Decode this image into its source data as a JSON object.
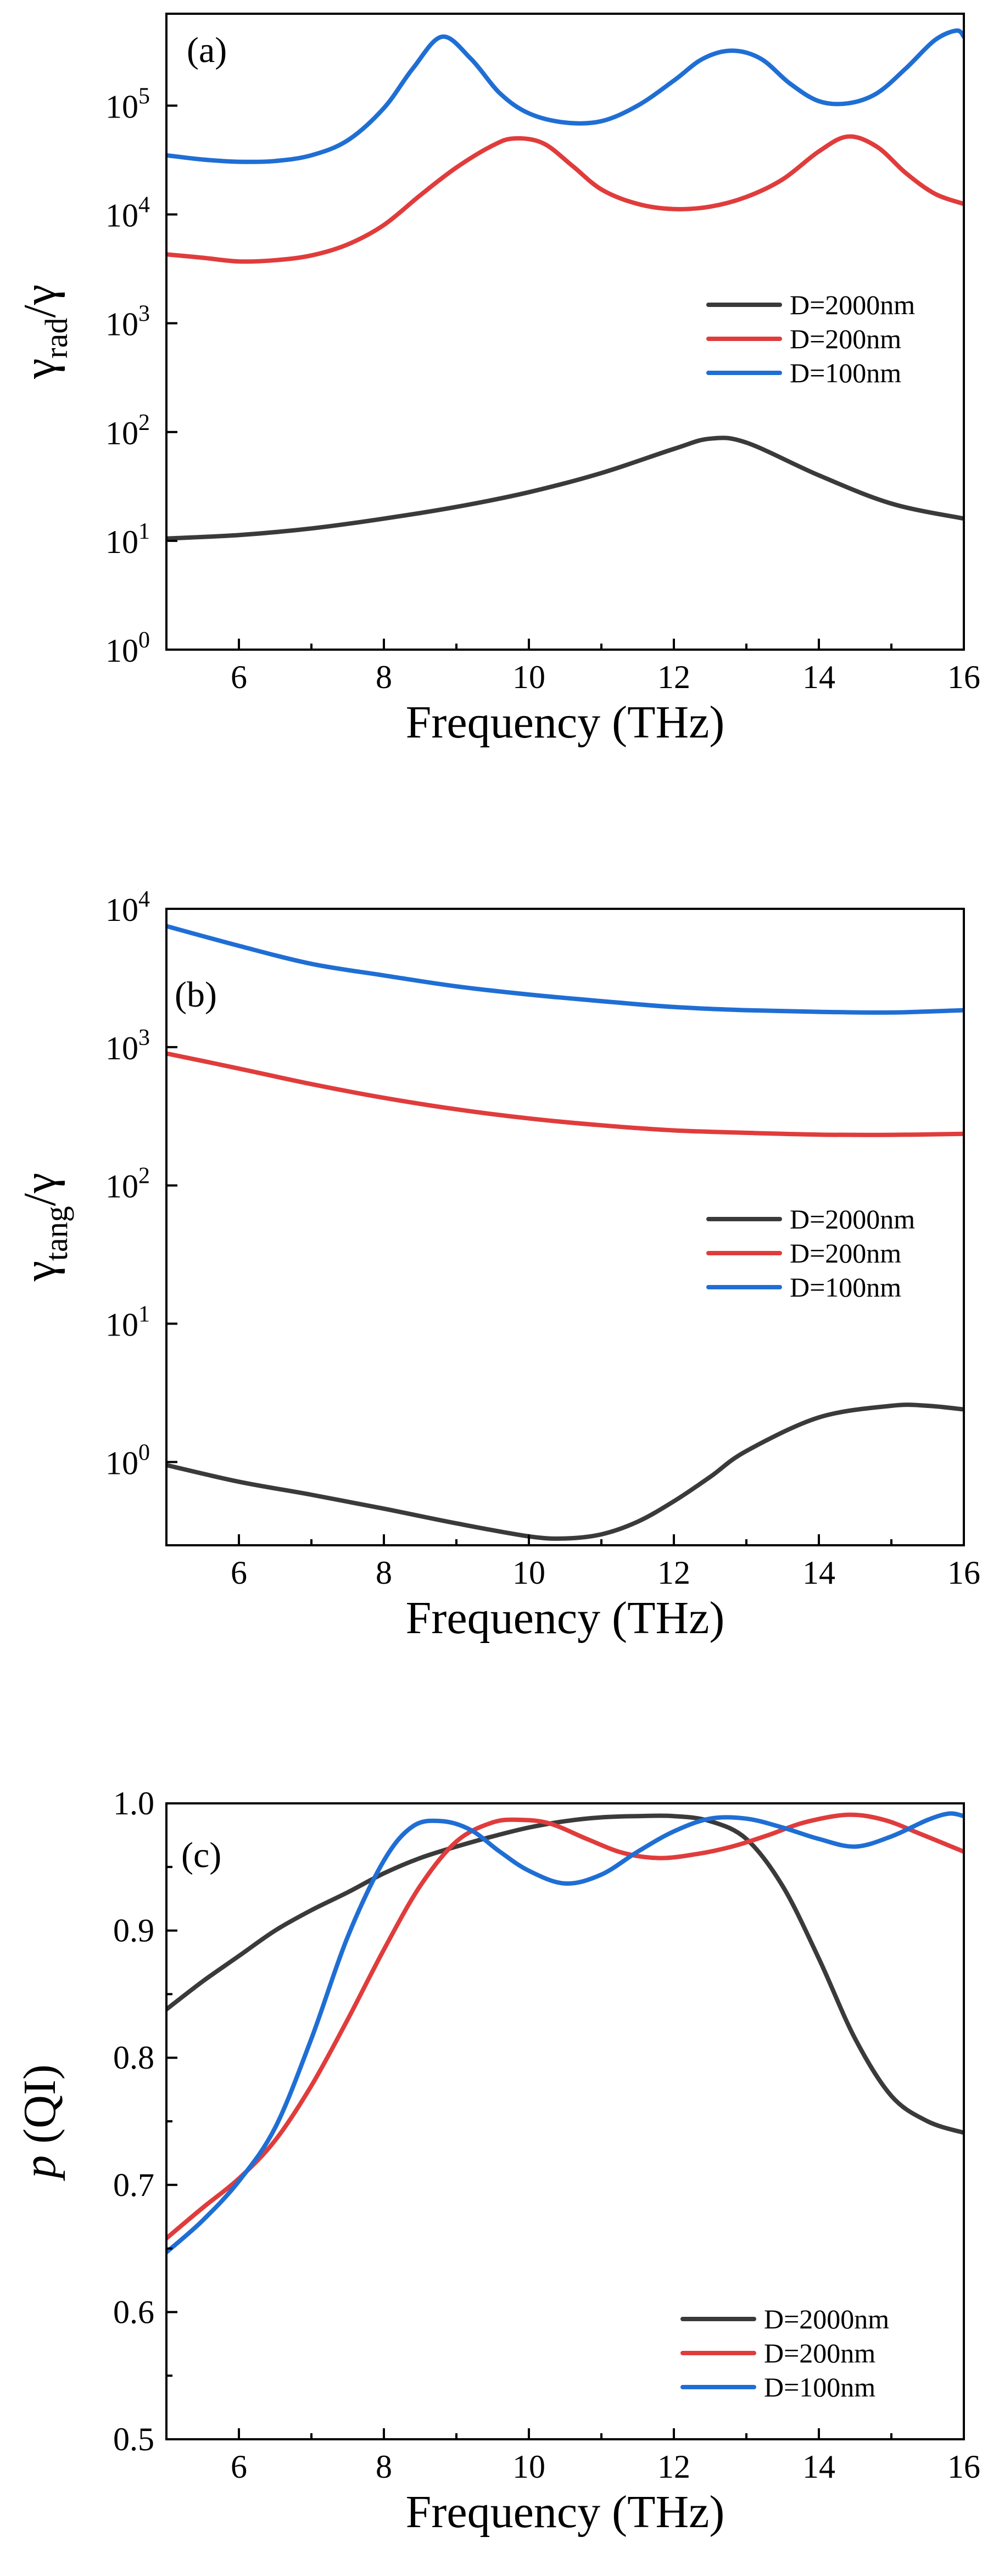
{
  "colors": {
    "d2000": "#3a3a3a",
    "d200": "#e03c3c",
    "d100": "#1f6ed4"
  },
  "chart_data": [
    {
      "type": "line",
      "panel_label": "(a)",
      "xlabel": "Frequency (THz)",
      "ylabel_main": "γ",
      "ylabel_sub": "rad",
      "ylabel_tail": "/γ",
      "yscale": "log",
      "xlim": [
        5,
        16
      ],
      "ylim": [
        1,
        700000
      ],
      "xticks": [
        6,
        8,
        10,
        12,
        14,
        16
      ],
      "xtick_labels": [
        "6",
        "8",
        "10",
        "12",
        "14",
        "16"
      ],
      "ytick_exponents": [
        0,
        1,
        2,
        3,
        4,
        5
      ],
      "ytick_base": "10",
      "ytick_sup": [
        "0",
        "1",
        "2",
        "3",
        "4",
        "5"
      ],
      "legend": [
        "D=2000nm",
        "D=200nm",
        "D=100nm"
      ],
      "series": [
        {
          "name": "D=2000nm",
          "x": [
            5,
            6,
            7,
            8,
            9,
            10,
            11,
            12,
            12.5,
            13,
            14,
            15,
            16
          ],
          "values": [
            10.5,
            11.3,
            13,
            16,
            20.5,
            28,
            42,
            70,
            87,
            80,
            40,
            22,
            16
          ]
        },
        {
          "name": "D=200nm",
          "x": [
            5,
            5.5,
            6,
            6.5,
            7,
            7.5,
            8,
            8.5,
            9,
            9.5,
            9.8,
            10.2,
            10.6,
            11,
            11.5,
            12,
            12.5,
            13,
            13.5,
            14,
            14.4,
            14.8,
            15.2,
            15.6,
            16
          ],
          "values": [
            4300,
            4000,
            3700,
            3800,
            4200,
            5300,
            8000,
            15000,
            27000,
            43000,
            50000,
            45000,
            28000,
            17000,
            12500,
            11200,
            11800,
            14500,
            21000,
            38000,
            52000,
            42000,
            24000,
            15500,
            12500
          ]
        },
        {
          "name": "D=100nm",
          "x": [
            5,
            5.5,
            6,
            6.5,
            7,
            7.5,
            8,
            8.4,
            8.8,
            9.2,
            9.6,
            10,
            10.5,
            11,
            11.5,
            12,
            12.4,
            12.8,
            13.2,
            13.6,
            14,
            14.4,
            14.8,
            15.2,
            15.6,
            15.9,
            16
          ],
          "values": [
            35000,
            32000,
            30500,
            31000,
            35000,
            48000,
            95000,
            220000,
            430000,
            270000,
            130000,
            85000,
            70000,
            72000,
            100000,
            170000,
            270000,
            320000,
            270000,
            160000,
            110000,
            105000,
            130000,
            220000,
            400000,
            490000,
            430000
          ]
        }
      ]
    },
    {
      "type": "line",
      "panel_label": "(b)",
      "xlabel": "Frequency (THz)",
      "ylabel_main": "γ",
      "ylabel_sub": "tang",
      "ylabel_tail": "/γ",
      "yscale": "log",
      "xlim": [
        5,
        16
      ],
      "ylim": [
        0.25,
        10000
      ],
      "xticks": [
        6,
        8,
        10,
        12,
        14,
        16
      ],
      "xtick_labels": [
        "6",
        "8",
        "10",
        "12",
        "14",
        "16"
      ],
      "ytick_exponents": [
        0,
        1,
        2,
        3,
        4
      ],
      "ytick_base": "10",
      "ytick_sup": [
        "0",
        "1",
        "2",
        "3",
        "4"
      ],
      "legend": [
        "D=2000nm",
        "D=200nm",
        "D=100nm"
      ],
      "series": [
        {
          "name": "D=2000nm",
          "x": [
            5,
            6,
            7,
            8,
            9,
            10,
            10.5,
            11,
            11.5,
            12,
            12.5,
            13,
            14,
            15,
            15.5,
            16
          ],
          "values": [
            0.95,
            0.72,
            0.58,
            0.46,
            0.36,
            0.29,
            0.28,
            0.3,
            0.37,
            0.52,
            0.78,
            1.2,
            2.1,
            2.55,
            2.55,
            2.4
          ]
        },
        {
          "name": "D=200nm",
          "x": [
            5,
            6,
            7,
            8,
            9,
            10,
            11,
            12,
            13,
            14,
            15,
            16
          ],
          "values": [
            900,
            700,
            540,
            430,
            355,
            305,
            272,
            250,
            240,
            233,
            232,
            236
          ]
        },
        {
          "name": "D=100nm",
          "x": [
            5,
            6,
            7,
            8,
            9,
            10,
            11,
            12,
            13,
            14,
            15,
            16
          ],
          "values": [
            7500,
            5400,
            4000,
            3300,
            2750,
            2400,
            2150,
            1950,
            1850,
            1800,
            1780,
            1850
          ]
        }
      ]
    },
    {
      "type": "line",
      "panel_label": "(c)",
      "xlabel": "Frequency (THz)",
      "ylabel_main": "p",
      "ylabel_tail": " (QI)",
      "yscale": "linear",
      "xlim": [
        5,
        16
      ],
      "ylim": [
        0.5,
        1.0
      ],
      "xticks": [
        6,
        8,
        10,
        12,
        14,
        16
      ],
      "xtick_labels": [
        "6",
        "8",
        "10",
        "12",
        "14",
        "16"
      ],
      "yticks": [
        0.5,
        0.6,
        0.7,
        0.8,
        0.9,
        1.0
      ],
      "ytick_labels": [
        "0.5",
        "0.6",
        "0.7",
        "0.8",
        "0.9",
        "1.0"
      ],
      "legend": [
        "D=2000nm",
        "D=200nm",
        "D=100nm"
      ],
      "series": [
        {
          "name": "D=2000nm",
          "x": [
            5,
            5.5,
            6,
            6.5,
            7,
            7.5,
            8,
            8.5,
            9,
            9.5,
            10,
            10.5,
            11,
            11.5,
            12,
            12.5,
            13,
            13.5,
            14,
            14.5,
            15,
            15.5,
            16
          ],
          "values": [
            0.838,
            0.86,
            0.88,
            0.9,
            0.916,
            0.93,
            0.945,
            0.957,
            0.966,
            0.974,
            0.981,
            0.986,
            0.989,
            0.99,
            0.99,
            0.986,
            0.972,
            0.935,
            0.878,
            0.815,
            0.77,
            0.75,
            0.741
          ]
        },
        {
          "name": "D=200nm",
          "x": [
            5,
            5.5,
            6,
            6.5,
            7,
            7.5,
            8,
            8.5,
            9,
            9.5,
            9.9,
            10.3,
            10.8,
            11.3,
            11.8,
            12.3,
            12.8,
            13.3,
            13.8,
            14.4,
            14.9,
            15.4,
            16
          ],
          "values": [
            0.658,
            0.682,
            0.705,
            0.735,
            0.778,
            0.83,
            0.885,
            0.935,
            0.97,
            0.985,
            0.987,
            0.984,
            0.972,
            0.961,
            0.957,
            0.96,
            0.966,
            0.975,
            0.985,
            0.991,
            0.987,
            0.976,
            0.962
          ]
        },
        {
          "name": "D=100nm",
          "x": [
            5,
            5.5,
            6,
            6.5,
            7,
            7.5,
            8,
            8.4,
            8.8,
            9.2,
            9.6,
            10,
            10.5,
            11,
            11.5,
            12,
            12.5,
            13,
            13.5,
            14,
            14.5,
            15,
            15.5,
            15.8,
            16
          ],
          "values": [
            0.647,
            0.672,
            0.703,
            0.745,
            0.815,
            0.895,
            0.955,
            0.982,
            0.986,
            0.979,
            0.962,
            0.947,
            0.937,
            0.944,
            0.962,
            0.978,
            0.988,
            0.988,
            0.981,
            0.972,
            0.966,
            0.974,
            0.987,
            0.992,
            0.99
          ]
        }
      ]
    }
  ]
}
